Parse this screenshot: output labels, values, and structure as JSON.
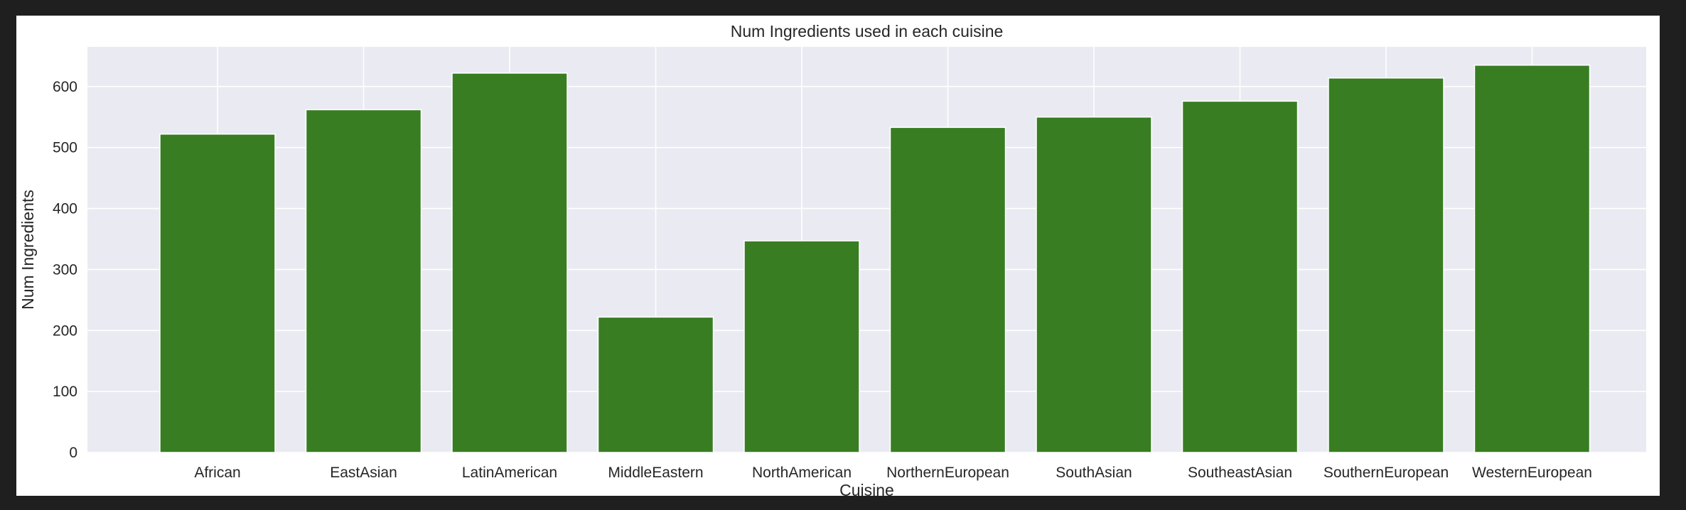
{
  "colors": {
    "page_background": "#1f1f1f",
    "figure_background": "#ffffff",
    "plot_background": "#eaeaf2",
    "grid": "#ffffff",
    "bar": "#387d22",
    "text": "#262626"
  },
  "chart_data": {
    "type": "bar",
    "title": "Num Ingredients used in each cuisine",
    "xlabel": "Cuisine",
    "ylabel": "Num Ingredients",
    "categories": [
      "African",
      "EastAsian",
      "LatinAmerican",
      "MiddleEastern",
      "NorthAmerican",
      "NorthernEuropean",
      "SouthAsian",
      "SoutheastAsian",
      "SouthernEuropean",
      "WesternEuropean"
    ],
    "values": [
      522,
      562,
      622,
      222,
      347,
      533,
      550,
      576,
      614,
      635
    ],
    "ylim": [
      0,
      665
    ],
    "yticks": [
      0,
      100,
      200,
      300,
      400,
      500,
      600
    ],
    "grid": true,
    "legend": "none"
  }
}
